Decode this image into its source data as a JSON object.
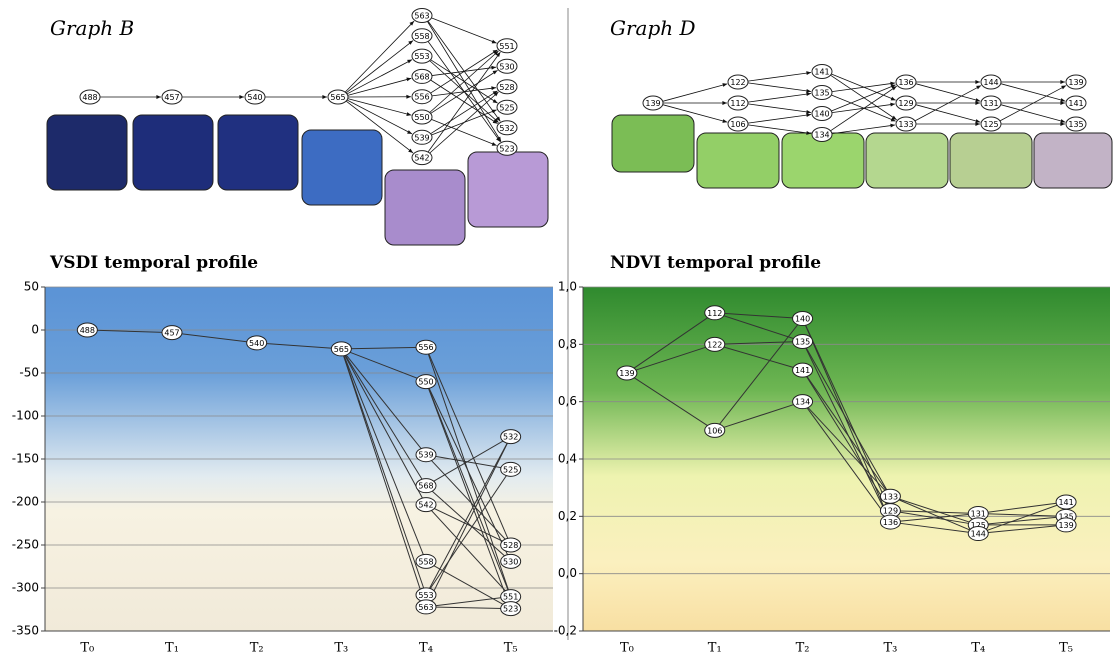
{
  "graphs": [
    {
      "title": "Graph B",
      "levels": [
        [
          "488"
        ],
        [
          "457"
        ],
        [
          "540"
        ],
        [
          "565"
        ],
        [
          "563",
          "558",
          "553",
          "568",
          "556",
          "550",
          "539",
          "542"
        ],
        [
          "551",
          "530",
          "528",
          "525",
          "532",
          "523"
        ]
      ]
    },
    {
      "title": "Graph D",
      "levels": [
        [
          "139"
        ],
        [
          "122",
          "112",
          "106"
        ],
        [
          "141",
          "135",
          "140",
          "134"
        ],
        [
          "136",
          "129",
          "133"
        ],
        [
          "144",
          "131",
          "125"
        ],
        [
          "139",
          "141",
          "135"
        ]
      ]
    }
  ],
  "chart_data": [
    {
      "type": "line",
      "title": "VSDI temporal profile",
      "categories": [
        "T₀",
        "T₁",
        "T₂",
        "T₃",
        "T₄",
        "T₅"
      ],
      "ylim": [
        -350,
        50
      ],
      "yticks": [
        50,
        0,
        -50,
        -100,
        -150,
        -200,
        -250,
        -300,
        -350
      ],
      "grid": true,
      "nodes": [
        [
          {
            "label": "488",
            "value": 0
          }
        ],
        [
          {
            "label": "457",
            "value": -3
          }
        ],
        [
          {
            "label": "540",
            "value": -15
          }
        ],
        [
          {
            "label": "565",
            "value": -22
          }
        ],
        [
          {
            "label": "556",
            "value": -20
          },
          {
            "label": "550",
            "value": -60
          },
          {
            "label": "539",
            "value": -145
          },
          {
            "label": "568",
            "value": -181
          },
          {
            "label": "542",
            "value": -203
          },
          {
            "label": "558",
            "value": -269
          },
          {
            "label": "553",
            "value": -308
          },
          {
            "label": "563",
            "value": -322
          }
        ],
        [
          {
            "label": "532",
            "value": -124
          },
          {
            "label": "525",
            "value": -162
          },
          {
            "label": "528",
            "value": -250
          },
          {
            "label": "530",
            "value": -269
          },
          {
            "label": "551",
            "value": -310
          },
          {
            "label": "523",
            "value": -324
          }
        ]
      ],
      "edges": [
        [
          0,
          0,
          0
        ],
        [
          1,
          0,
          0
        ],
        [
          2,
          0,
          0
        ],
        [
          3,
          0,
          0
        ],
        [
          3,
          0,
          1
        ],
        [
          3,
          0,
          2
        ],
        [
          3,
          0,
          3
        ],
        [
          3,
          0,
          4
        ],
        [
          3,
          0,
          5
        ],
        [
          3,
          0,
          6
        ],
        [
          3,
          0,
          7
        ],
        [
          4,
          0,
          2
        ],
        [
          4,
          0,
          4
        ],
        [
          4,
          1,
          3
        ],
        [
          4,
          1,
          5
        ],
        [
          4,
          1,
          4
        ],
        [
          4,
          2,
          2
        ],
        [
          4,
          2,
          1
        ],
        [
          4,
          3,
          0
        ],
        [
          4,
          3,
          3
        ],
        [
          4,
          4,
          2
        ],
        [
          4,
          4,
          4
        ],
        [
          4,
          5,
          5
        ],
        [
          4,
          6,
          0
        ],
        [
          4,
          6,
          1
        ],
        [
          4,
          7,
          0
        ],
        [
          4,
          7,
          4
        ],
        [
          4,
          7,
          5
        ]
      ]
    },
    {
      "type": "line",
      "title": "NDVI temporal profile",
      "categories": [
        "T₀",
        "T₁",
        "T₂",
        "T₃",
        "T₄",
        "T₅"
      ],
      "ylim": [
        -0.2,
        1.0
      ],
      "yticks": [
        {
          "value": 1.0,
          "label": "1,0"
        },
        {
          "value": 0.8,
          "label": "0,8"
        },
        {
          "value": 0.6,
          "label": "0,6"
        },
        {
          "value": 0.4,
          "label": "0,4"
        },
        {
          "value": 0.2,
          "label": "0,2"
        },
        {
          "value": 0.0,
          "label": "0,0"
        },
        {
          "value": -0.2,
          "label": "-0,2"
        }
      ],
      "grid": true,
      "nodes": [
        [
          {
            "label": "139",
            "value": 0.7
          }
        ],
        [
          {
            "label": "112",
            "value": 0.91
          },
          {
            "label": "122",
            "value": 0.8
          },
          {
            "label": "106",
            "value": 0.5
          }
        ],
        [
          {
            "label": "140",
            "value": 0.89
          },
          {
            "label": "135",
            "value": 0.81
          },
          {
            "label": "141",
            "value": 0.71
          },
          {
            "label": "134",
            "value": 0.6
          }
        ],
        [
          {
            "label": "133",
            "value": 0.27
          },
          {
            "label": "129",
            "value": 0.22
          },
          {
            "label": "136",
            "value": 0.18
          }
        ],
        [
          {
            "label": "131",
            "value": 0.21
          },
          {
            "label": "125",
            "value": 0.17
          },
          {
            "label": "144",
            "value": 0.14
          }
        ],
        [
          {
            "label": "141",
            "value": 0.25
          },
          {
            "label": "135",
            "value": 0.2
          },
          {
            "label": "139",
            "value": 0.17
          }
        ]
      ],
      "edges": [
        [
          0,
          0,
          0
        ],
        [
          0,
          0,
          1
        ],
        [
          0,
          0,
          2
        ],
        [
          1,
          0,
          0
        ],
        [
          1,
          0,
          1
        ],
        [
          1,
          1,
          2
        ],
        [
          1,
          1,
          1
        ],
        [
          1,
          2,
          3
        ],
        [
          1,
          2,
          0
        ],
        [
          2,
          0,
          2
        ],
        [
          2,
          0,
          1
        ],
        [
          2,
          1,
          2
        ],
        [
          2,
          1,
          0
        ],
        [
          2,
          2,
          1
        ],
        [
          2,
          2,
          0
        ],
        [
          2,
          3,
          0
        ],
        [
          2,
          3,
          2
        ],
        [
          3,
          2,
          2
        ],
        [
          3,
          2,
          0
        ],
        [
          3,
          1,
          0
        ],
        [
          3,
          1,
          1
        ],
        [
          3,
          0,
          1
        ],
        [
          3,
          0,
          2
        ],
        [
          4,
          2,
          2
        ],
        [
          4,
          2,
          0
        ],
        [
          4,
          0,
          0
        ],
        [
          4,
          0,
          1
        ],
        [
          4,
          1,
          1
        ],
        [
          4,
          1,
          2
        ]
      ]
    }
  ]
}
